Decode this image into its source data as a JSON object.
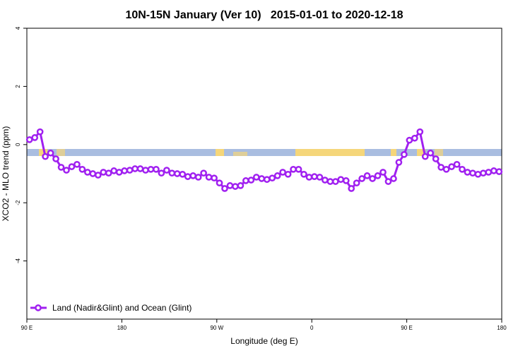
{
  "chart_data": {
    "type": "line",
    "title": "10N-15N January (Ver 10)   2015-01-01 to 2020-12-18",
    "x_label": "Longitude (deg E)",
    "y_label": "XCO2 - MLO trend (ppm)",
    "xlim": [
      90,
      540
    ],
    "ylim": [
      -6,
      4
    ],
    "xticks": [
      {
        "value": 90,
        "label": "90 E"
      },
      180,
      {
        "value": 270,
        "label": "90 W"
      },
      {
        "value": 360,
        "label": "0"
      },
      {
        "value": 450,
        "label": "90 E"
      },
      {
        "value": 540,
        "label": "180"
      }
    ],
    "yticks": [
      -4,
      -2,
      0,
      2,
      4
    ],
    "legend_position": "bottom-left",
    "x": [
      92.5,
      97.5,
      102.5,
      107.5,
      112.5,
      117.5,
      122.5,
      127.5,
      132.5,
      137.5,
      142.5,
      147.5,
      152.5,
      157.5,
      162.5,
      167.5,
      172.5,
      177.5,
      182.5,
      187.5,
      192.5,
      197.5,
      202.5,
      207.5,
      212.5,
      217.5,
      222.5,
      227.5,
      232.5,
      237.5,
      242.5,
      247.5,
      252.5,
      257.5,
      262.5,
      267.5,
      272.5,
      277.5,
      282.5,
      287.5,
      292.5,
      297.5,
      302.5,
      307.5,
      312.5,
      317.5,
      322.5,
      327.5,
      332.5,
      337.5,
      342.5,
      347.5,
      352.5,
      357.5,
      362.5,
      367.5,
      372.5,
      377.5,
      382.5,
      387.5,
      392.5,
      397.5,
      402.5,
      407.5,
      412.5,
      417.5,
      422.5,
      427.5,
      432.5,
      437.5,
      442.5,
      447.5,
      452.5,
      457.5,
      462.5,
      467.5,
      472.5,
      477.5,
      482.5,
      487.5,
      492.5,
      497.5,
      502.5,
      507.5,
      512.5,
      517.5,
      522.5,
      527.5,
      532.5,
      537.5
    ],
    "series": [
      {
        "name": "Land (Nadir&Glint) and Ocean (Glint)",
        "color": "#a020f0",
        "values": [
          0.17,
          0.24,
          0.44,
          -0.41,
          -0.29,
          -0.49,
          -0.78,
          -0.88,
          -0.76,
          -0.68,
          -0.85,
          -0.95,
          -1.0,
          -1.05,
          -0.95,
          -0.98,
          -0.9,
          -0.95,
          -0.9,
          -0.88,
          -0.83,
          -0.83,
          -0.88,
          -0.85,
          -0.85,
          -0.98,
          -0.88,
          -0.98,
          -1.0,
          -1.02,
          -1.1,
          -1.07,
          -1.12,
          -0.98,
          -1.12,
          -1.15,
          -1.32,
          -1.51,
          -1.41,
          -1.44,
          -1.41,
          -1.24,
          -1.22,
          -1.12,
          -1.17,
          -1.2,
          -1.15,
          -1.07,
          -0.95,
          -1.02,
          -0.85,
          -0.85,
          -1.02,
          -1.12,
          -1.1,
          -1.12,
          -1.22,
          -1.27,
          -1.27,
          -1.2,
          -1.24,
          -1.51,
          -1.32,
          -1.17,
          -1.07,
          -1.17,
          -1.07,
          -0.95,
          -1.27,
          -1.17,
          -0.61,
          -0.34,
          0.15,
          0.22,
          0.44,
          -0.41,
          -0.29,
          -0.49,
          -0.78,
          -0.85,
          -0.76,
          -0.68,
          -0.85,
          -0.95,
          -0.98,
          -1.02,
          -0.98,
          -0.95,
          -0.9,
          -0.93
        ]
      }
    ]
  }
}
